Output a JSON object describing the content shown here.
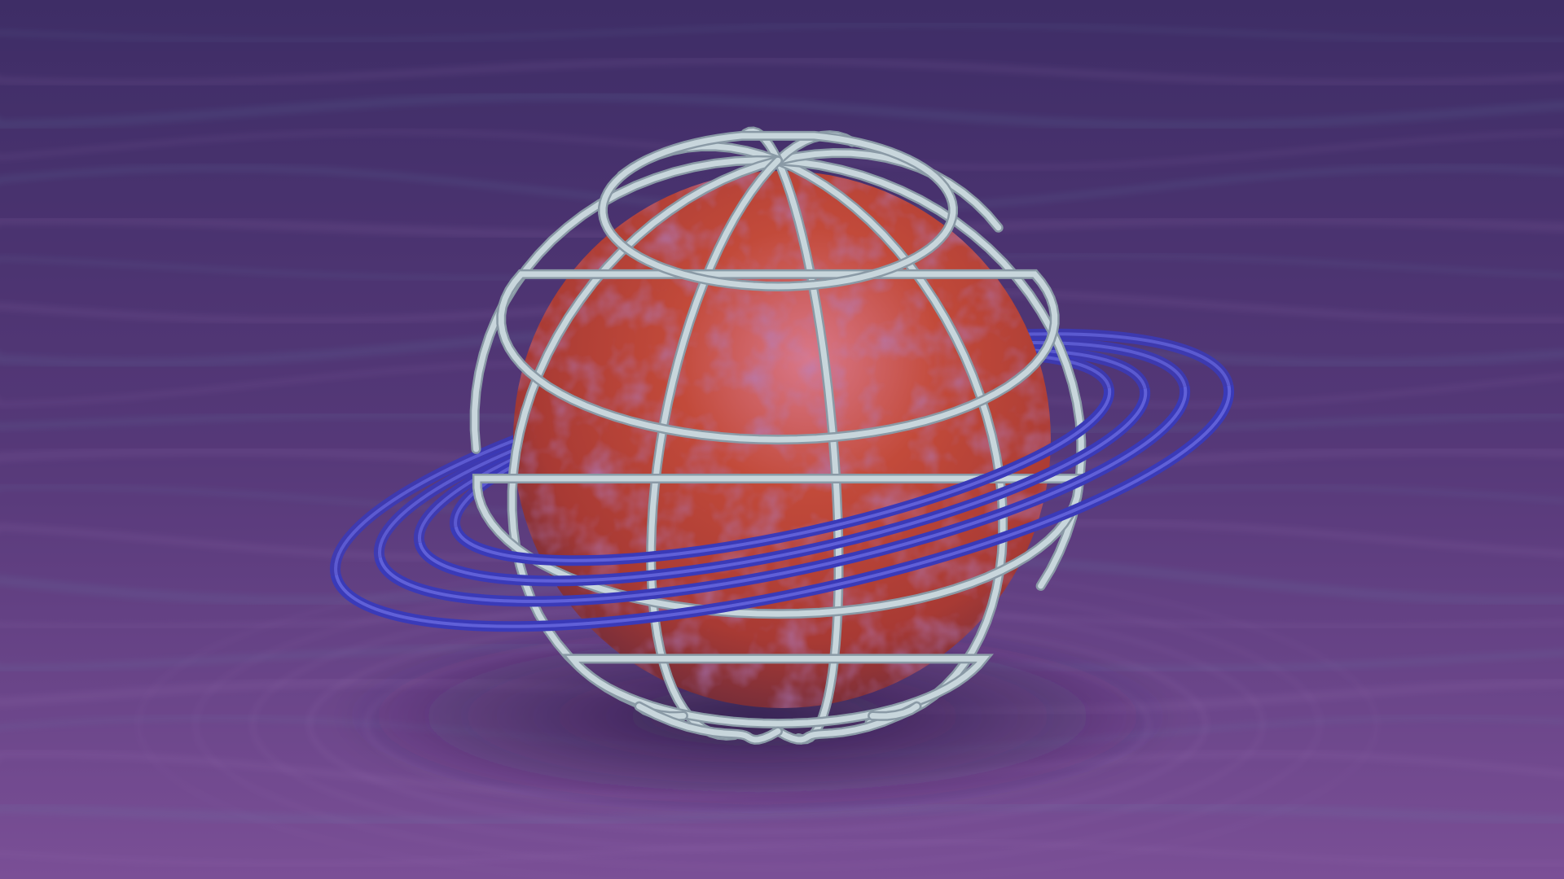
{
  "scene": {
    "subject": "caged-textured-sphere",
    "palette": {
      "background_top": "#3e2d66",
      "background_mid": "#5b3a80",
      "background_bottom": "#7a4f96",
      "water_highlight": "#a07ab8",
      "sphere_core": "#c24a3a",
      "sphere_highlight": "#d9788a",
      "sphere_shadow": "#6a2a3a",
      "sphere_purple_spots": "#6a3a9a",
      "cage_wire": "#c8d6dc",
      "cage_wire_shadow": "#8a9aa6",
      "ring": "#3a3ab8",
      "ring_highlight": "#6a6ae0"
    }
  }
}
